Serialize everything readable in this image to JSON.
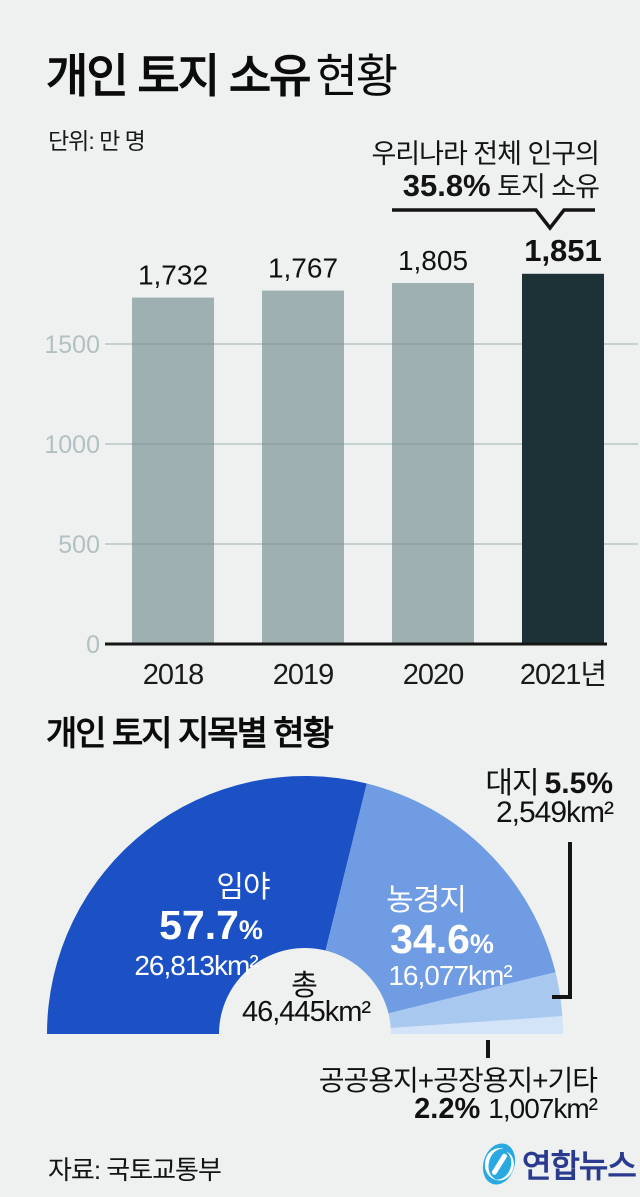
{
  "page": {
    "background": "#eef1ef"
  },
  "header": {
    "title_strong": "개인 토지 소유",
    "title_light": "현황",
    "unit": "단위: 만 명"
  },
  "annotation": {
    "line1": "우리나라 전체 인구의",
    "pct": "35.8%",
    "suffix": " 토지 소유"
  },
  "section2": {
    "title": "개인 토지 지목별 현황"
  },
  "chart_data": [
    {
      "type": "bar",
      "title": "개인 토지 소유 현황",
      "unit": "만 명",
      "categories": [
        "2018",
        "2019",
        "2020",
        "2021년"
      ],
      "values": [
        1732,
        1767,
        1805,
        1851
      ],
      "value_labels": [
        "1,732",
        "1,767",
        "1,805",
        "1,851"
      ],
      "highlight_index": 3,
      "yticks": [
        0,
        500,
        1000,
        1500
      ],
      "ylim": [
        0,
        2000
      ],
      "grid": true,
      "bar_color": "#9fb0b3",
      "highlight_color": "#1d3236",
      "tick_color": "#b2c0c3",
      "annotation_target": "2021년"
    },
    {
      "type": "pie",
      "shape": "half-donut",
      "title": "개인 토지 지목별 현황",
      "slices": [
        {
          "name": "임야",
          "pct": "57.7",
          "pct_sign": "%",
          "area": "26,813km²",
          "color": "#1b51c5"
        },
        {
          "name": "농경지",
          "pct": "34.6",
          "pct_sign": "%",
          "area": "16,077km²",
          "color": "#6f9ce3"
        },
        {
          "name": "대지",
          "pct": "5.5",
          "pct_sign": "%",
          "area": "2,549km²",
          "color": "#a9c8f0"
        },
        {
          "name": "공공용지+공장용지+기타",
          "pct": "2.2",
          "pct_sign": "%",
          "area": "1,007km²",
          "color": "#d3e4f8"
        }
      ],
      "center": {
        "label": "총",
        "value": "46,445km²"
      }
    }
  ],
  "footer": {
    "source": "자료: 국토교통부",
    "logo_text": "연합뉴스"
  }
}
